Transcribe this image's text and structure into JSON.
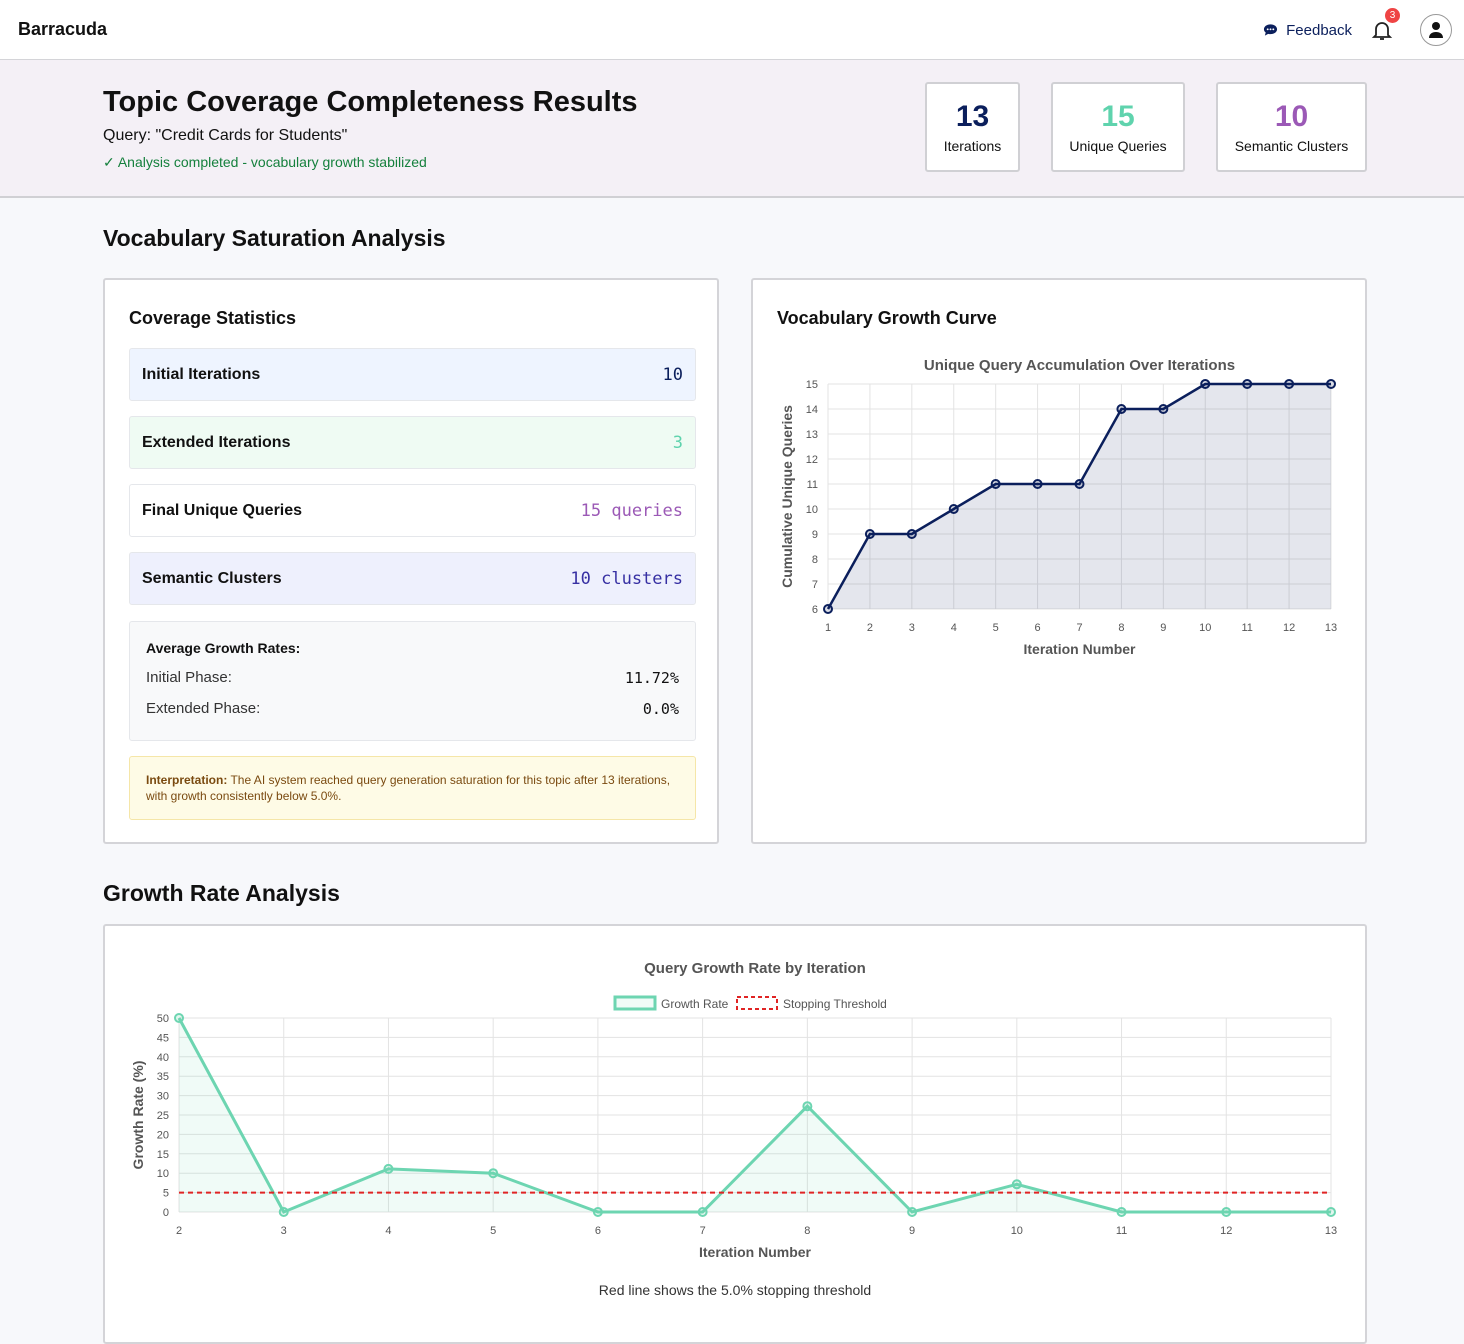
{
  "app": {
    "brand": "Barracuda",
    "feedback": "Feedback",
    "notifications": "3"
  },
  "hero": {
    "title": "Topic Coverage Completeness Results",
    "query": "Query: \"Credit Cards for Students\"",
    "status": "✓ Analysis completed - vocabulary growth stabilized",
    "stats": [
      {
        "value": "13",
        "label": "Iterations",
        "color": "#0b1f5c"
      },
      {
        "value": "15",
        "label": "Unique Queries",
        "color": "#5fd3ad"
      },
      {
        "value": "10",
        "label": "Semantic Clusters",
        "color": "#9b59b6"
      }
    ]
  },
  "saturation": {
    "heading": "Vocabulary Saturation Analysis",
    "coverage": {
      "title": "Coverage Statistics",
      "rows": [
        {
          "label": "Initial Iterations",
          "value": "10",
          "bg": "#eef4ff",
          "color": "#0b1f5c"
        },
        {
          "label": "Extended Iterations",
          "value": "3",
          "bg": "#effbf3",
          "color": "#5fd3ad"
        },
        {
          "label": "Final Unique Queries",
          "value": "15 queries",
          "bg": "#ffffff",
          "color": "#9b59b6"
        },
        {
          "label": "Semantic Clusters",
          "value": "10 clusters",
          "bg": "#eef0fd",
          "color": "#3730a3"
        }
      ],
      "avg_title": "Average Growth Rates:",
      "initial_label": "Initial Phase:",
      "initial_value": "11.72%",
      "extended_label": "Extended Phase:",
      "extended_value": "0.0%",
      "interp_label": "Interpretation:",
      "interp_text": " The AI system reached query generation saturation for this topic after 13 iterations, with growth consistently below 5.0%."
    },
    "growth_card_title": "Vocabulary Growth Curve"
  },
  "growth_section": {
    "heading": "Growth Rate Analysis",
    "footnote": "Red line shows the 5.0% stopping threshold"
  },
  "chart_data": [
    {
      "type": "area",
      "title": "Unique Query Accumulation Over Iterations",
      "xlabel": "Iteration Number",
      "ylabel": "Cumulative Unique Queries",
      "x": [
        1,
        2,
        3,
        4,
        5,
        6,
        7,
        8,
        9,
        10,
        11,
        12,
        13
      ],
      "values": [
        6,
        9,
        9,
        10,
        11,
        11,
        11,
        14,
        14,
        15,
        15,
        15,
        15
      ],
      "ylim": [
        6,
        15
      ],
      "yticks": [
        6,
        7,
        8,
        9,
        10,
        11,
        12,
        13,
        14,
        15
      ],
      "grid": true,
      "color": "#0b1f5c"
    },
    {
      "type": "line",
      "title": "Query Growth Rate by Iteration",
      "xlabel": "Iteration Number",
      "ylabel": "Growth Rate (%)",
      "legend": "top",
      "x": [
        2,
        3,
        4,
        5,
        6,
        7,
        8,
        9,
        10,
        11,
        12,
        13
      ],
      "ylim": [
        0,
        50
      ],
      "yticks": [
        0,
        5,
        10,
        15,
        20,
        25,
        30,
        35,
        40,
        45,
        50
      ],
      "grid": true,
      "series": [
        {
          "name": "Growth Rate",
          "values": [
            50,
            0,
            11.11,
            10,
            0,
            0,
            27.27,
            0,
            7.14,
            0,
            0,
            0
          ],
          "color": "#6dd5b1"
        },
        {
          "name": "Stopping Threshold",
          "values": [
            5,
            5,
            5,
            5,
            5,
            5,
            5,
            5,
            5,
            5,
            5,
            5
          ],
          "color": "#e02424",
          "dashed": true
        }
      ]
    }
  ]
}
